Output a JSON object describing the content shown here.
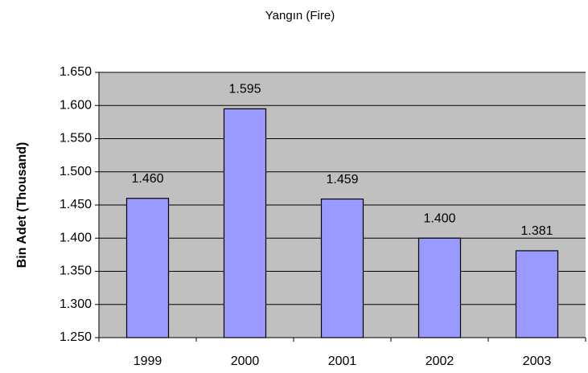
{
  "chart_data": {
    "type": "bar",
    "title": "Yangın (Fire)",
    "y_label": "Bin Adet (Thousand)",
    "categories": [
      "1999",
      "2000",
      "2001",
      "2002",
      "2003"
    ],
    "values": [
      1460,
      1595,
      1459,
      1400,
      1381
    ],
    "value_labels": [
      "1.460",
      "1.595",
      "1.459",
      "1.400",
      "1.381"
    ],
    "color": "#9999ff",
    "ylim": [
      1250,
      1650
    ],
    "yticks": [
      {
        "value": 1250,
        "label": "1.250"
      },
      {
        "value": 1300,
        "label": "1.300"
      },
      {
        "value": 1350,
        "label": "1.350"
      },
      {
        "value": 1400,
        "label": "1.400"
      },
      {
        "value": 1450,
        "label": "1.450"
      },
      {
        "value": 1500,
        "label": "1.500"
      },
      {
        "value": 1550,
        "label": "1.550"
      },
      {
        "value": 1600,
        "label": "1.600"
      },
      {
        "value": 1650,
        "label": "1.650"
      }
    ],
    "grid": true
  }
}
